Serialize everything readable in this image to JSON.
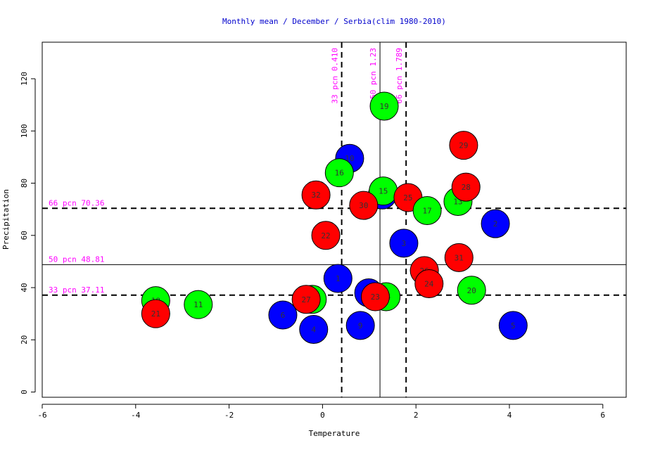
{
  "chart_data": {
    "type": "scatter",
    "title": "Monthly mean / December / Serbia(clim 1980-2010)",
    "xlabel": "Temperature",
    "ylabel": "Precipitation",
    "xlim": [
      -6,
      6.5
    ],
    "ylim": [
      -2,
      134
    ],
    "xticks": [
      -6,
      -4,
      -2,
      0,
      2,
      4,
      6
    ],
    "yticks": [
      0,
      20,
      40,
      60,
      80,
      100,
      120
    ],
    "grid": false,
    "colors": {
      "blue": "#0000ff",
      "green": "#00ff00",
      "red": "#ff0000",
      "annotation": "#ff00ff",
      "title": "#0000cc"
    },
    "reference_lines": [
      {
        "axis": "x",
        "value": 0.41,
        "style": "dashed",
        "label": "33 pcn 0.410"
      },
      {
        "axis": "x",
        "value": 1.23,
        "style": "solid",
        "label": "50 pcn 1.23"
      },
      {
        "axis": "x",
        "value": 1.789,
        "style": "dashed",
        "label": "66 pcn 1.789"
      },
      {
        "axis": "y",
        "value": 70.36,
        "style": "dashed",
        "label": "66 pcn 70.36"
      },
      {
        "axis": "y",
        "value": 48.81,
        "style": "solid",
        "label": "50 pcn 48.81"
      },
      {
        "axis": "y",
        "value": 37.11,
        "style": "dashed",
        "label": "33 pcn 37.11"
      }
    ],
    "points": [
      {
        "label": "19",
        "x": 1.32,
        "y": 109.5,
        "color": "green"
      },
      {
        "label": "10",
        "x": 0.58,
        "y": 89.5,
        "color": "blue"
      },
      {
        "label": "16",
        "x": 0.36,
        "y": 84.0,
        "color": "green"
      },
      {
        "label": "",
        "x": 1.28,
        "y": 75.5,
        "color": "blue"
      },
      {
        "label": "15",
        "x": 1.3,
        "y": 77.0,
        "color": "green"
      },
      {
        "label": "32",
        "x": -0.14,
        "y": 75.5,
        "color": "red"
      },
      {
        "label": "30",
        "x": 0.88,
        "y": 71.5,
        "color": "red"
      },
      {
        "label": "25",
        "x": 1.83,
        "y": 74.5,
        "color": "red"
      },
      {
        "label": "17",
        "x": 2.24,
        "y": 69.5,
        "color": "green"
      },
      {
        "label": "13",
        "x": 2.9,
        "y": 73.0,
        "color": "green"
      },
      {
        "label": "29",
        "x": 3.02,
        "y": 94.5,
        "color": "red"
      },
      {
        "label": "28",
        "x": 3.07,
        "y": 78.5,
        "color": "red"
      },
      {
        "label": "2",
        "x": 3.7,
        "y": 64.5,
        "color": "blue"
      },
      {
        "label": "22",
        "x": 0.07,
        "y": 60.0,
        "color": "red"
      },
      {
        "label": "3",
        "x": 1.74,
        "y": 57.0,
        "color": "blue"
      },
      {
        "label": "31",
        "x": 2.92,
        "y": 51.5,
        "color": "red"
      },
      {
        "label": "26",
        "x": 2.18,
        "y": 46.5,
        "color": "red"
      },
      {
        "label": "24",
        "x": 2.28,
        "y": 41.5,
        "color": "red"
      },
      {
        "label": "20",
        "x": 3.19,
        "y": 39.0,
        "color": "green"
      },
      {
        "label": "1",
        "x": 0.33,
        "y": 43.5,
        "color": "blue"
      },
      {
        "label": "8",
        "x": 0.99,
        "y": 38.0,
        "color": "blue"
      },
      {
        "label": "14",
        "x": 1.36,
        "y": 36.5,
        "color": "green"
      },
      {
        "label": "23",
        "x": 1.13,
        "y": 36.5,
        "color": "red"
      },
      {
        "label": "12",
        "x": -0.22,
        "y": 35.5,
        "color": "green"
      },
      {
        "label": "27",
        "x": -0.35,
        "y": 35.5,
        "color": "red"
      },
      {
        "label": "18",
        "x": -3.57,
        "y": 35.0,
        "color": "green"
      },
      {
        "label": "21",
        "x": -3.57,
        "y": 30.0,
        "color": "red"
      },
      {
        "label": "11",
        "x": -2.66,
        "y": 33.5,
        "color": "green"
      },
      {
        "label": "6",
        "x": -0.85,
        "y": 29.5,
        "color": "blue"
      },
      {
        "label": "4",
        "x": -0.19,
        "y": 24.0,
        "color": "blue"
      },
      {
        "label": "9",
        "x": 0.81,
        "y": 25.5,
        "color": "blue"
      },
      {
        "label": "5",
        "x": 4.08,
        "y": 25.5,
        "color": "blue"
      }
    ]
  }
}
